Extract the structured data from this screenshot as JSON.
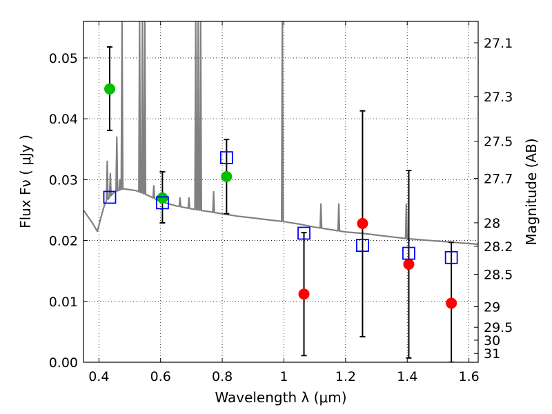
{
  "chart_data": {
    "type": "scatter",
    "xlabel": "Wavelength  λ (μm)",
    "ylabel": "Flux  Fν  ( μJy )",
    "ylabel_right": "Magnitude (AB)",
    "xlim": [
      0.35,
      1.63
    ],
    "ylim": [
      0.0,
      0.056
    ],
    "grid": true,
    "x_ticks": [
      {
        "value": 0.4,
        "label": "0.4"
      },
      {
        "value": 0.6,
        "label": "0.6"
      },
      {
        "value": 0.8,
        "label": "0.8"
      },
      {
        "value": 1.0,
        "label": "1"
      },
      {
        "value": 1.2,
        "label": "1.2"
      },
      {
        "value": 1.4,
        "label": "1.4"
      },
      {
        "value": 1.6,
        "label": "1.6"
      }
    ],
    "y_ticks": [
      {
        "value": 0.0,
        "label": "0.00"
      },
      {
        "value": 0.01,
        "label": "0.01"
      },
      {
        "value": 0.02,
        "label": "0.02"
      },
      {
        "value": 0.03,
        "label": "0.03"
      },
      {
        "value": 0.04,
        "label": "0.04"
      },
      {
        "value": 0.05,
        "label": "0.05"
      }
    ],
    "y_right_ticks": [
      {
        "value": 27.1,
        "label": "27.1"
      },
      {
        "value": 27.3,
        "label": "27.3"
      },
      {
        "value": 27.5,
        "label": "27.5"
      },
      {
        "value": 27.7,
        "label": "27.7"
      },
      {
        "value": 28.0,
        "label": "28"
      },
      {
        "value": 28.2,
        "label": "28.2"
      },
      {
        "value": 28.5,
        "label": "28.5"
      },
      {
        "value": 29.0,
        "label": "29"
      },
      {
        "value": 29.5,
        "label": "29.5"
      },
      {
        "value": 30.0,
        "label": "30"
      },
      {
        "value": 31.0,
        "label": "31"
      }
    ],
    "colors": {
      "spectrum": "#808080",
      "detection": "#00c000",
      "upper_limit": "#ff0000",
      "model": "#0000ff",
      "errorbar": "#000000"
    },
    "spectrum": {
      "continuum": [
        [
          0.35,
          0.025
        ],
        [
          0.38,
          0.0228
        ],
        [
          0.395,
          0.0215
        ],
        [
          0.405,
          0.0235
        ],
        [
          0.42,
          0.0262
        ],
        [
          0.45,
          0.028
        ],
        [
          0.48,
          0.0285
        ],
        [
          0.52,
          0.0282
        ],
        [
          0.56,
          0.0274
        ],
        [
          0.6,
          0.0264
        ],
        [
          0.65,
          0.0257
        ],
        [
          0.7,
          0.0252
        ],
        [
          0.75,
          0.0248
        ],
        [
          0.8,
          0.0244
        ],
        [
          0.85,
          0.024
        ],
        [
          0.9,
          0.0237
        ],
        [
          0.95,
          0.0234
        ],
        [
          1.0,
          0.0231
        ],
        [
          1.05,
          0.0227
        ],
        [
          1.1,
          0.0222
        ],
        [
          1.15,
          0.0218
        ],
        [
          1.2,
          0.0214
        ],
        [
          1.25,
          0.0212
        ],
        [
          1.3,
          0.0209
        ],
        [
          1.35,
          0.0206
        ],
        [
          1.4,
          0.0203
        ],
        [
          1.45,
          0.0201
        ],
        [
          1.5,
          0.0199
        ],
        [
          1.55,
          0.0197
        ],
        [
          1.6,
          0.0195
        ],
        [
          1.63,
          0.0194
        ]
      ],
      "lines": [
        {
          "x": 0.427,
          "peak": 0.033
        },
        {
          "x": 0.437,
          "peak": 0.031
        },
        {
          "x": 0.458,
          "peak": 0.037
        },
        {
          "x": 0.468,
          "peak": 0.03
        },
        {
          "x": 0.475,
          "peak": 0.056
        },
        {
          "x": 0.532,
          "peak": 0.056
        },
        {
          "x": 0.541,
          "peak": 0.056
        },
        {
          "x": 0.549,
          "peak": 0.056
        },
        {
          "x": 0.578,
          "peak": 0.029
        },
        {
          "x": 0.663,
          "peak": 0.027
        },
        {
          "x": 0.692,
          "peak": 0.027
        },
        {
          "x": 0.714,
          "peak": 0.056
        },
        {
          "x": 0.722,
          "peak": 0.056
        },
        {
          "x": 0.73,
          "peak": 0.056
        },
        {
          "x": 0.772,
          "peak": 0.028
        },
        {
          "x": 0.995,
          "peak": 0.056
        },
        {
          "x": 1.12,
          "peak": 0.026
        },
        {
          "x": 1.178,
          "peak": 0.026
        },
        {
          "x": 1.397,
          "peak": 0.026
        }
      ]
    },
    "series": [
      {
        "marker": "circle",
        "color": "#00c000",
        "points": [
          {
            "x": 0.435,
            "y": 0.0449,
            "yerr_low": 0.0381,
            "yerr_high": 0.0518
          },
          {
            "x": 0.606,
            "y": 0.027,
            "yerr_low": 0.0229,
            "yerr_high": 0.0313
          },
          {
            "x": 0.814,
            "y": 0.0305,
            "yerr_low": 0.0244,
            "yerr_high": 0.0366
          }
        ]
      },
      {
        "marker": "circle",
        "color": "#ff0000",
        "points": [
          {
            "x": 1.065,
            "y": 0.0112,
            "yerr_low": 0.0011,
            "yerr_high": 0.0213
          },
          {
            "x": 1.255,
            "y": 0.0228,
            "yerr_low": 0.0042,
            "yerr_high": 0.0413
          },
          {
            "x": 1.405,
            "y": 0.0161,
            "yerr_low": 0.0007,
            "yerr_high": 0.0315
          },
          {
            "x": 1.543,
            "y": 0.0097,
            "yerr_low": 0.0,
            "yerr_high": 0.0197
          }
        ]
      },
      {
        "marker": "open-square",
        "color": "#0000ff",
        "points": [
          {
            "x": 0.435,
            "y": 0.0271
          },
          {
            "x": 0.606,
            "y": 0.0262
          },
          {
            "x": 0.814,
            "y": 0.0336
          },
          {
            "x": 1.065,
            "y": 0.0212
          },
          {
            "x": 1.255,
            "y": 0.0192
          },
          {
            "x": 1.405,
            "y": 0.0179
          },
          {
            "x": 1.543,
            "y": 0.0172
          }
        ]
      }
    ]
  }
}
